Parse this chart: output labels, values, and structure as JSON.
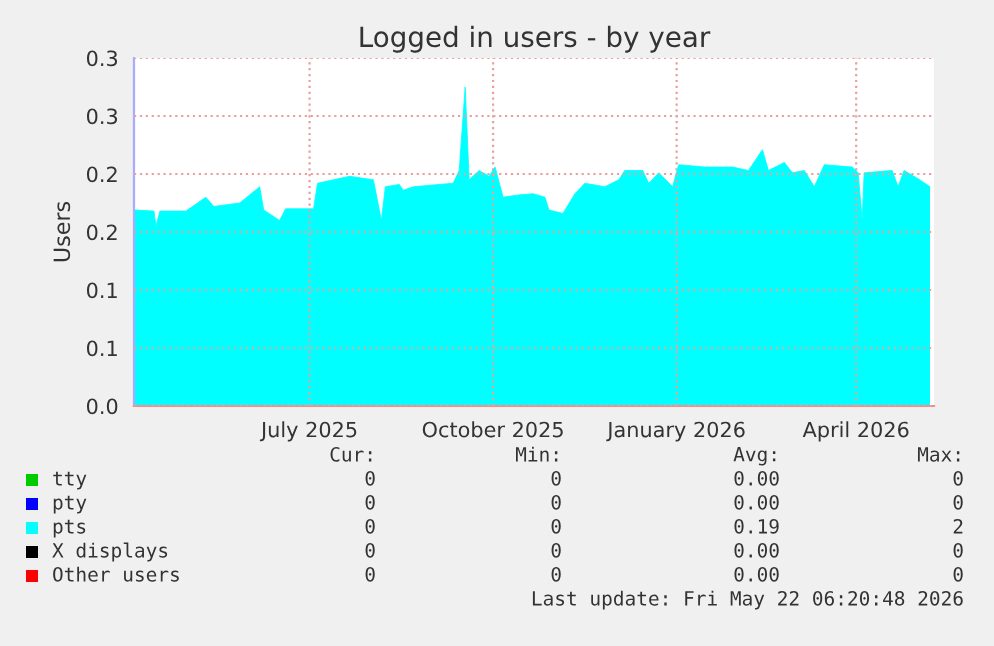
{
  "chart_data": {
    "type": "area",
    "title": "Logged in users - by year",
    "ylabel": "Users",
    "x": [
      "2025-04-04",
      "2025-04-14",
      "2025-04-15",
      "2025-04-17",
      "2025-04-30",
      "2025-05-10",
      "2025-05-14",
      "2025-05-27",
      "2025-06-06",
      "2025-06-08",
      "2025-06-16",
      "2025-06-19",
      "2025-07-03",
      "2025-07-05",
      "2025-07-13",
      "2025-07-21",
      "2025-08-02",
      "2025-08-06",
      "2025-08-08",
      "2025-08-15",
      "2025-08-17",
      "2025-08-22",
      "2025-09-11",
      "2025-09-14",
      "2025-09-17",
      "2025-09-19",
      "2025-09-24",
      "2025-09-29",
      "2025-10-02",
      "2025-10-06",
      "2025-10-14",
      "2025-10-21",
      "2025-10-27",
      "2025-10-29",
      "2025-11-05",
      "2025-11-11",
      "2025-11-16",
      "2025-11-26",
      "2025-12-03",
      "2025-12-06",
      "2025-12-15",
      "2025-12-18",
      "2025-12-23",
      "2025-12-30",
      "2026-01-02",
      "2026-01-15",
      "2026-01-29",
      "2026-02-06",
      "2026-02-13",
      "2026-02-16",
      "2026-02-24",
      "2026-02-28",
      "2026-03-06",
      "2026-03-11",
      "2026-03-16",
      "2026-03-30",
      "2026-04-02",
      "2026-04-04",
      "2026-04-05",
      "2026-04-19",
      "2026-04-22",
      "2026-04-25",
      "2026-05-02",
      "2026-05-08"
    ],
    "series": [
      {
        "name": "tty",
        "color": "#00cc00",
        "values": [
          null,
          null,
          null,
          null,
          null,
          null,
          null,
          null,
          null,
          null,
          null,
          null,
          null,
          null,
          null,
          null,
          null,
          null,
          null,
          null,
          null,
          null,
          null,
          null,
          null,
          null,
          null,
          null,
          null,
          null,
          null,
          null,
          null,
          null,
          null,
          null,
          null,
          null,
          null,
          null,
          null,
          null,
          null,
          null,
          null,
          null,
          null,
          null,
          null,
          null,
          null,
          null,
          null,
          null,
          null,
          null,
          null,
          null,
          null,
          null,
          null,
          null,
          null,
          null
        ]
      },
      {
        "name": "pty",
        "color": "#0000ff",
        "values": [
          null,
          null,
          null,
          null,
          null,
          null,
          null,
          null,
          null,
          null,
          null,
          null,
          null,
          null,
          null,
          null,
          null,
          null,
          null,
          null,
          null,
          null,
          null,
          null,
          null,
          null,
          null,
          null,
          null,
          null,
          null,
          null,
          null,
          null,
          null,
          null,
          null,
          null,
          null,
          null,
          null,
          null,
          null,
          null,
          null,
          null,
          null,
          null,
          null,
          null,
          null,
          null,
          null,
          null,
          null,
          null,
          null,
          null,
          null,
          null,
          null,
          null,
          null,
          null
        ]
      },
      {
        "name": "pts",
        "color": "#00ffff",
        "values": [
          0.169,
          0.168,
          0.155,
          0.168,
          0.168,
          0.18,
          0.172,
          0.175,
          0.189,
          0.169,
          0.16,
          0.17,
          0.17,
          0.192,
          0.195,
          0.198,
          0.195,
          0.16,
          0.189,
          0.191,
          0.186,
          0.189,
          0.192,
          0.203,
          0.275,
          0.195,
          0.203,
          0.198,
          0.206,
          0.18,
          0.182,
          0.183,
          0.18,
          0.169,
          0.166,
          0.183,
          0.192,
          0.189,
          0.195,
          0.203,
          0.203,
          0.192,
          0.201,
          0.189,
          0.208,
          0.206,
          0.206,
          0.203,
          0.221,
          0.203,
          0.21,
          0.201,
          0.203,
          0.189,
          0.208,
          0.206,
          0.201,
          0.16,
          0.201,
          0.203,
          0.189,
          0.203,
          0.196,
          0.189
        ]
      },
      {
        "name": "X displays",
        "color": "#000000",
        "values": [
          null,
          null,
          null,
          null,
          null,
          null,
          null,
          null,
          null,
          null,
          null,
          null,
          null,
          null,
          null,
          null,
          null,
          null,
          null,
          null,
          null,
          null,
          null,
          null,
          null,
          null,
          null,
          null,
          null,
          null,
          null,
          null,
          null,
          null,
          null,
          null,
          null,
          null,
          null,
          null,
          null,
          null,
          null,
          null,
          null,
          null,
          null,
          null,
          null,
          null,
          null,
          null,
          null,
          null,
          null,
          null,
          null,
          null,
          null,
          null,
          null,
          null,
          null,
          null
        ]
      },
      {
        "name": "Other users",
        "color": "#ff0000",
        "values": [
          null,
          null,
          null,
          null,
          null,
          null,
          null,
          null,
          null,
          null,
          null,
          null,
          null,
          null,
          null,
          null,
          null,
          null,
          null,
          null,
          null,
          null,
          null,
          null,
          null,
          null,
          null,
          null,
          null,
          null,
          null,
          null,
          null,
          null,
          null,
          null,
          null,
          null,
          null,
          null,
          null,
          null,
          null,
          null,
          null,
          null,
          null,
          null,
          null,
          null,
          null,
          null,
          null,
          null,
          null,
          null,
          null,
          null,
          null,
          null,
          null,
          null,
          null,
          null
        ]
      }
    ],
    "xlim": [
      "2025-04-04",
      "2026-05-10"
    ],
    "xticks": [
      {
        "value": "2025-07-01",
        "label": "July 2025"
      },
      {
        "value": "2025-10-01",
        "label": "October 2025"
      },
      {
        "value": "2026-01-01",
        "label": "January 2026"
      },
      {
        "value": "2026-04-01",
        "label": "April 2026"
      }
    ],
    "ylim": [
      0,
      0.3
    ],
    "yticks": [
      {
        "value": 0,
        "label": "0.0"
      },
      {
        "value": 0.05,
        "label": "0.1"
      },
      {
        "value": 0.1,
        "label": "0.1"
      },
      {
        "value": 0.15,
        "label": "0.2"
      },
      {
        "value": 0.2,
        "label": "0.2"
      },
      {
        "value": 0.25,
        "label": "0.3"
      },
      {
        "value": 0.3,
        "label": "0.3"
      }
    ],
    "grid": true,
    "legend": "bottom",
    "annotations": [
      "Cur:",
      "Min:",
      "Avg:",
      "Max:",
      "0",
      "0",
      "0.00",
      "0",
      "0",
      "0",
      "0.00",
      "0",
      "0",
      "0",
      "0.19",
      "2",
      "0",
      "0",
      "0.00",
      "0",
      "0",
      "0",
      "0.00",
      "0",
      "Last update: Fri May 22 06:20:48 2026"
    ]
  }
}
